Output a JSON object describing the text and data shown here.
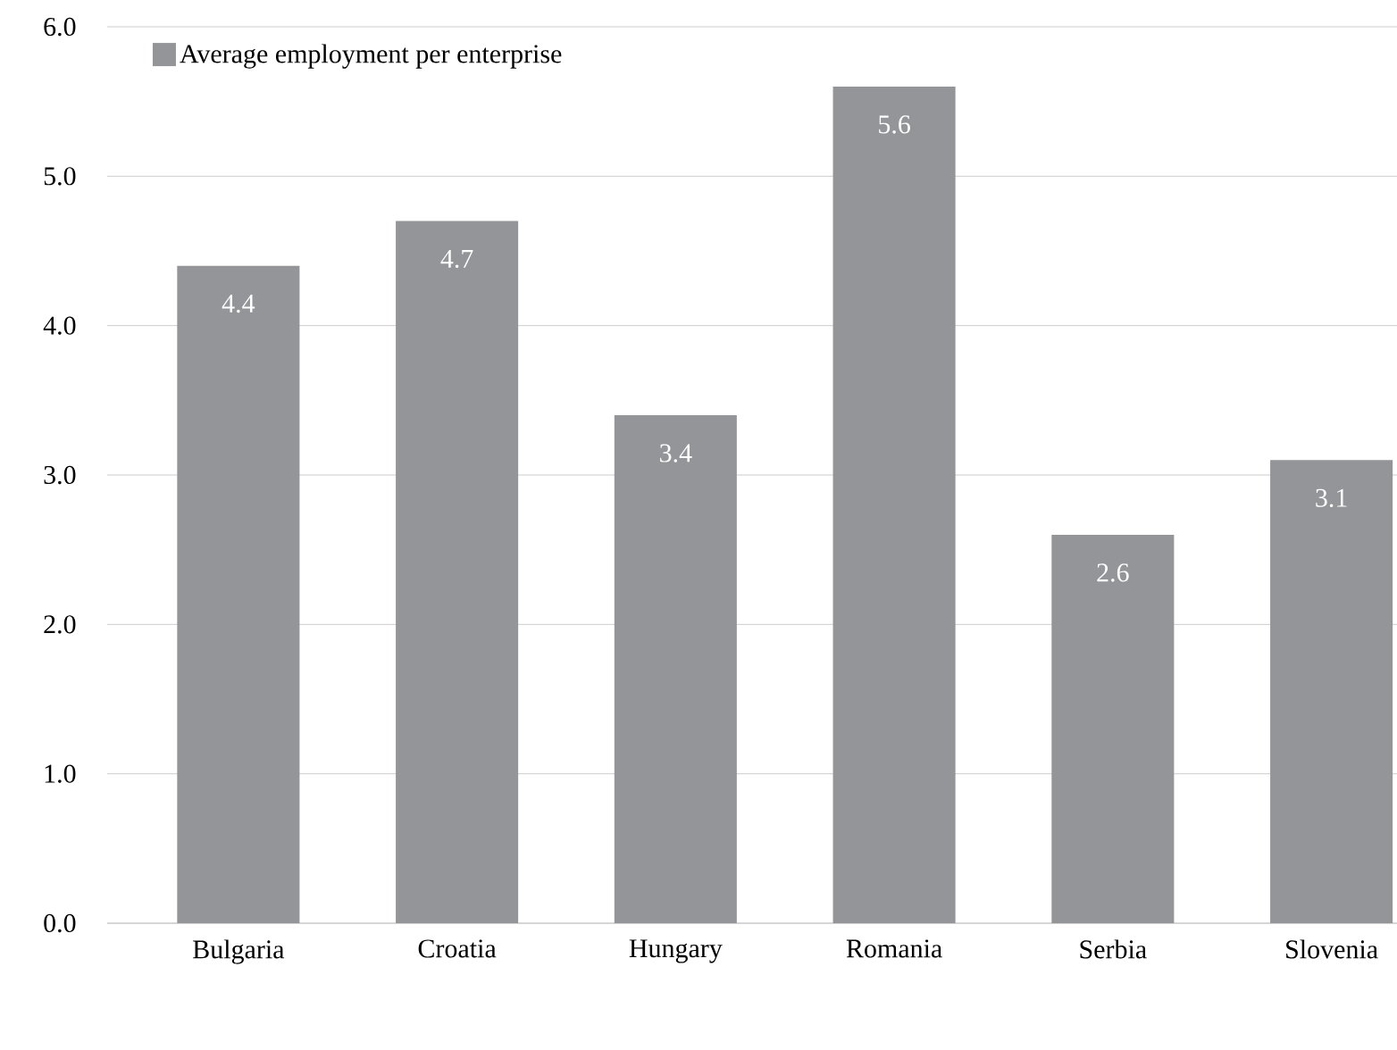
{
  "chart_data": {
    "type": "bar",
    "categories": [
      "Bulgaria",
      "Croatia",
      "Hungary",
      "Romania",
      "Serbia",
      "Slovenia"
    ],
    "series": [
      {
        "name": "Average employment per enterprise",
        "color": "#939598",
        "values": [
          4.4,
          4.7,
          3.4,
          5.6,
          2.6,
          3.1
        ]
      }
    ],
    "ylim": [
      0,
      6
    ],
    "yticks": [
      {
        "value": 0,
        "label": "0.0"
      },
      {
        "value": 1,
        "label": "1.0"
      },
      {
        "value": 2,
        "label": "2.0"
      },
      {
        "value": 3,
        "label": "3.0"
      },
      {
        "value": 4,
        "label": "4.0"
      },
      {
        "value": 5,
        "label": "5.0"
      },
      {
        "value": 6,
        "label": "6.0"
      }
    ],
    "grid": "y",
    "legend": "top left",
    "data_labels": true
  }
}
